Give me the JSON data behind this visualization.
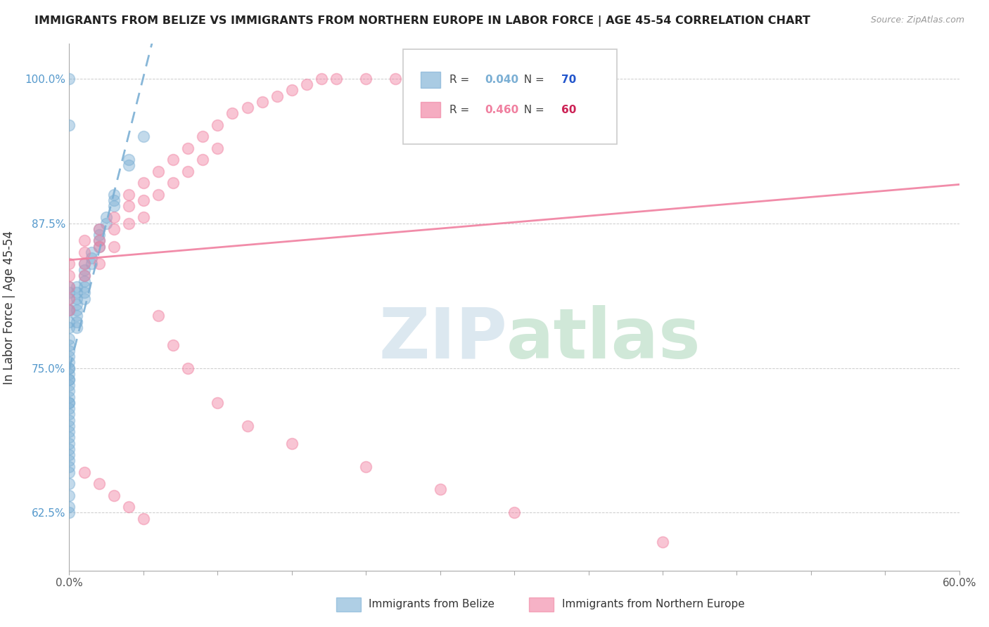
{
  "title": "IMMIGRANTS FROM BELIZE VS IMMIGRANTS FROM NORTHERN EUROPE IN LABOR FORCE | AGE 45-54 CORRELATION CHART",
  "source": "Source: ZipAtlas.com",
  "xlabel_belize": "Immigrants from Belize",
  "xlabel_northern": "Immigrants from Northern Europe",
  "ylabel": "In Labor Force | Age 45-54",
  "xlim": [
    0.0,
    0.6
  ],
  "ylim": [
    0.575,
    1.03
  ],
  "xticks": [
    0.0,
    0.1,
    0.2,
    0.3,
    0.4,
    0.5,
    0.6
  ],
  "xticklabels": [
    "0.0%",
    "",
    "",
    "",
    "",
    "",
    "60.0%"
  ],
  "yticks": [
    0.625,
    0.75,
    0.875,
    1.0
  ],
  "yticklabels": [
    "62.5%",
    "75.0%",
    "87.5%",
    "100.0%"
  ],
  "belize_color": "#7bafd4",
  "northern_color": "#f080a0",
  "belize_R": 0.04,
  "belize_N": 70,
  "northern_R": 0.46,
  "northern_N": 60,
  "background_color": "#ffffff",
  "belize_x": [
    0.0,
    0.0,
    0.0,
    0.0,
    0.0,
    0.0,
    0.0,
    0.0,
    0.0,
    0.0,
    0.0,
    0.0,
    0.0,
    0.0,
    0.0,
    0.0,
    0.0,
    0.0,
    0.0,
    0.0,
    0.0,
    0.0,
    0.0,
    0.0,
    0.0,
    0.0,
    0.0,
    0.0,
    0.0,
    0.0,
    0.005,
    0.005,
    0.005,
    0.005,
    0.005,
    0.005,
    0.005,
    0.005,
    0.01,
    0.01,
    0.01,
    0.01,
    0.01,
    0.01,
    0.01,
    0.015,
    0.015,
    0.015,
    0.02,
    0.02,
    0.02,
    0.02,
    0.025,
    0.025,
    0.03,
    0.03,
    0.03,
    0.04,
    0.04,
    0.05,
    0.0,
    0.0,
    0.0,
    0.0,
    0.0,
    0.0,
    0.0,
    0.0,
    0.0,
    0.0
  ],
  "belize_y": [
    0.8,
    0.81,
    0.82,
    0.815,
    0.8,
    0.79,
    0.785,
    0.775,
    0.77,
    0.765,
    0.76,
    0.755,
    0.75,
    0.745,
    0.74,
    0.735,
    0.73,
    0.725,
    0.72,
    0.715,
    0.71,
    0.705,
    0.7,
    0.695,
    0.69,
    0.685,
    0.68,
    0.675,
    0.67,
    0.665,
    0.82,
    0.815,
    0.81,
    0.805,
    0.8,
    0.795,
    0.79,
    0.785,
    0.84,
    0.835,
    0.83,
    0.825,
    0.82,
    0.815,
    0.81,
    0.85,
    0.845,
    0.84,
    0.87,
    0.865,
    0.86,
    0.855,
    0.88,
    0.875,
    0.9,
    0.895,
    0.89,
    0.93,
    0.925,
    0.95,
    0.625,
    0.63,
    0.64,
    0.65,
    0.66,
    0.72,
    0.74,
    0.75,
    0.96,
    1.0
  ],
  "northern_x": [
    0.0,
    0.0,
    0.0,
    0.0,
    0.0,
    0.01,
    0.01,
    0.01,
    0.01,
    0.02,
    0.02,
    0.02,
    0.02,
    0.03,
    0.03,
    0.03,
    0.04,
    0.04,
    0.04,
    0.05,
    0.05,
    0.05,
    0.06,
    0.06,
    0.07,
    0.07,
    0.08,
    0.08,
    0.09,
    0.09,
    0.1,
    0.1,
    0.11,
    0.12,
    0.13,
    0.14,
    0.15,
    0.16,
    0.17,
    0.18,
    0.2,
    0.22,
    0.25,
    0.28,
    0.35,
    0.01,
    0.02,
    0.03,
    0.04,
    0.05,
    0.06,
    0.07,
    0.08,
    0.1,
    0.12,
    0.15,
    0.2,
    0.25,
    0.3,
    0.4
  ],
  "northern_y": [
    0.84,
    0.83,
    0.82,
    0.81,
    0.8,
    0.86,
    0.85,
    0.84,
    0.83,
    0.87,
    0.86,
    0.855,
    0.84,
    0.88,
    0.87,
    0.855,
    0.9,
    0.89,
    0.875,
    0.91,
    0.895,
    0.88,
    0.92,
    0.9,
    0.93,
    0.91,
    0.94,
    0.92,
    0.95,
    0.93,
    0.96,
    0.94,
    0.97,
    0.975,
    0.98,
    0.985,
    0.99,
    0.995,
    1.0,
    1.0,
    1.0,
    1.0,
    1.0,
    1.0,
    1.0,
    0.66,
    0.65,
    0.64,
    0.63,
    0.62,
    0.795,
    0.77,
    0.75,
    0.72,
    0.7,
    0.685,
    0.665,
    0.645,
    0.625,
    0.6
  ]
}
